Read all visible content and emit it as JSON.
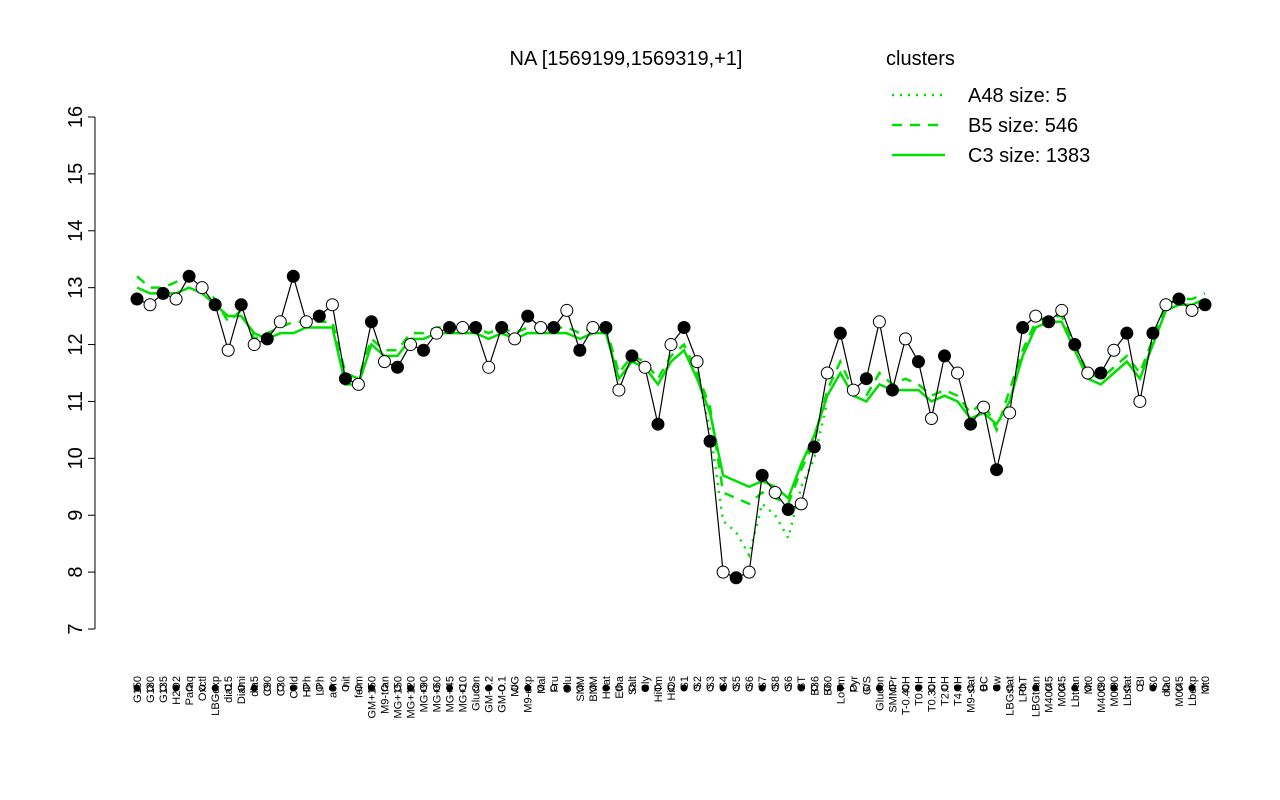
{
  "chart_data": {
    "type": "line",
    "title": "NA [1569199,1569319,+1]",
    "legend_title": "clusters",
    "legend_color": "#00e000",
    "ylim": [
      7,
      16
    ],
    "yticks": [
      7,
      8,
      9,
      10,
      11,
      12,
      13,
      14,
      15,
      16
    ],
    "categories": [
      "G150",
      "G180",
      "G135",
      "H2O2",
      "Paraq",
      "Oxctl",
      "LBGexp",
      "dia15",
      "Diami",
      "dia5",
      "C90",
      "C30",
      "Cold",
      "HPh",
      "LPh",
      "aero",
      "nit",
      "ferm",
      "GM+150",
      "M9-tran",
      "MG+150",
      "MG+120",
      "MG+90",
      "MG+60",
      "MG+45",
      "MG+10",
      "Glucon",
      "GM-0.2",
      "GM-0.1",
      "M/G",
      "M9-exp",
      "Mal",
      "Fru",
      "Glu",
      "SMM",
      "BMM",
      "Heat",
      "Etha",
      "Salt",
      "Gly",
      "HiTm",
      "HiOs",
      "S1",
      "S2",
      "S3",
      "S4",
      "S5",
      "S6",
      "S7",
      "S8",
      "S6",
      "BT",
      "B36",
      "B60",
      "LoTm",
      "Pyr",
      "G/S",
      "Glucon",
      "SMMPr",
      "T-0.40H",
      "T0.0H",
      "T0.30H",
      "T2.0H",
      "T4.0H",
      "M9-stat",
      "BC",
      "Sw",
      "LBGstat",
      "LPhT",
      "LBGtran",
      "M40t45",
      "M0t45",
      "Lbtran",
      "Mt0",
      "M40t90",
      "M0t90",
      "Lbstat",
      "BI",
      "S0",
      "dia0",
      "M0t45",
      "Lbexp",
      "Mt0"
    ],
    "series": [
      {
        "color": "#000000",
        "values": [
          12.8,
          12.7,
          12.9,
          12.8,
          13.2,
          13.0,
          12.7,
          11.9,
          12.7,
          12.0,
          12.1,
          12.4,
          13.2,
          12.4,
          12.5,
          12.7,
          11.4,
          11.3,
          12.4,
          11.7,
          11.6,
          12.0,
          11.9,
          12.2,
          12.3,
          12.3,
          12.3,
          11.6,
          12.3,
          12.1,
          12.5,
          12.3,
          12.3,
          12.6,
          11.9,
          12.3,
          12.3,
          11.2,
          11.8,
          11.6,
          10.6,
          12.0,
          12.3,
          11.7,
          10.3,
          8.0,
          7.9,
          8.0,
          9.7,
          9.4,
          9.1,
          9.2,
          10.2,
          11.5,
          12.2,
          11.2,
          11.4,
          12.4,
          11.2,
          12.1,
          11.7,
          10.7,
          11.8,
          11.5,
          10.6,
          10.9,
          9.8,
          10.8,
          12.3,
          12.5,
          12.4,
          12.6,
          12.0,
          11.5,
          11.5,
          11.9,
          12.2,
          11.0,
          12.2,
          12.7,
          12.8,
          12.6,
          12.7
        ]
      },
      {
        "name": "A48 size: 5",
        "color": "#00e000",
        "dash": "dotted",
        "values": [
          null,
          null,
          null,
          null,
          null,
          null,
          null,
          null,
          null,
          null,
          null,
          null,
          null,
          null,
          null,
          null,
          null,
          null,
          null,
          null,
          null,
          null,
          null,
          null,
          null,
          null,
          null,
          null,
          null,
          null,
          null,
          null,
          null,
          null,
          null,
          null,
          null,
          null,
          null,
          null,
          null,
          null,
          null,
          11.5,
          10.5,
          8.9,
          8.7,
          8.3,
          9.2,
          9.0,
          8.6,
          9.5,
          10.0,
          11.0,
          null,
          null,
          null,
          null,
          null,
          null,
          null,
          null,
          null,
          null,
          null,
          null,
          null,
          null,
          null,
          null,
          null,
          null,
          null,
          null,
          null,
          null,
          null,
          null,
          null,
          null,
          null,
          null,
          null
        ]
      },
      {
        "name": "B5 size: 546",
        "color": "#00e000",
        "dash": "dashed",
        "values": [
          13.2,
          13.0,
          13.0,
          13.1,
          13.2,
          13.0,
          12.8,
          12.4,
          12.6,
          12.1,
          12.2,
          12.3,
          12.4,
          12.4,
          12.4,
          12.4,
          11.5,
          11.4,
          12.1,
          11.9,
          11.9,
          12.2,
          12.2,
          12.3,
          12.3,
          12.3,
          12.3,
          12.2,
          12.3,
          12.2,
          12.3,
          12.3,
          12.3,
          12.3,
          12.2,
          12.3,
          12.3,
          11.5,
          11.8,
          11.7,
          11.4,
          11.8,
          12.0,
          11.5,
          10.9,
          9.4,
          9.3,
          9.2,
          9.4,
          9.3,
          9.2,
          9.8,
          10.3,
          11.2,
          11.7,
          11.2,
          11.1,
          11.5,
          11.3,
          11.4,
          11.3,
          11.1,
          11.2,
          11.1,
          10.8,
          11.0,
          10.5,
          11.2,
          11.9,
          12.4,
          12.5,
          12.5,
          12.0,
          11.5,
          11.4,
          11.6,
          11.8,
          11.5,
          12.1,
          12.7,
          12.8,
          12.8,
          12.9
        ]
      },
      {
        "name": "C3 size: 1383",
        "color": "#00e000",
        "dash": "solid",
        "values": [
          13.0,
          12.9,
          12.9,
          12.9,
          13.0,
          12.9,
          12.7,
          12.5,
          12.5,
          12.2,
          12.1,
          12.2,
          12.2,
          12.3,
          12.3,
          12.3,
          11.3,
          11.3,
          12.0,
          11.8,
          11.8,
          12.1,
          12.1,
          12.2,
          12.2,
          12.2,
          12.2,
          12.1,
          12.2,
          12.1,
          12.2,
          12.2,
          12.2,
          12.2,
          12.1,
          12.2,
          12.2,
          11.4,
          11.7,
          11.6,
          11.3,
          11.7,
          11.9,
          11.4,
          10.8,
          9.7,
          9.6,
          9.5,
          9.6,
          9.5,
          9.3,
          9.9,
          10.4,
          11.1,
          11.5,
          11.1,
          11.0,
          11.3,
          11.2,
          11.2,
          11.2,
          11.0,
          11.1,
          11.0,
          10.7,
          10.8,
          10.6,
          11.0,
          11.8,
          12.3,
          12.4,
          12.4,
          11.9,
          11.4,
          11.3,
          11.5,
          11.7,
          11.4,
          12.0,
          12.6,
          12.7,
          12.7,
          12.8
        ]
      }
    ]
  }
}
